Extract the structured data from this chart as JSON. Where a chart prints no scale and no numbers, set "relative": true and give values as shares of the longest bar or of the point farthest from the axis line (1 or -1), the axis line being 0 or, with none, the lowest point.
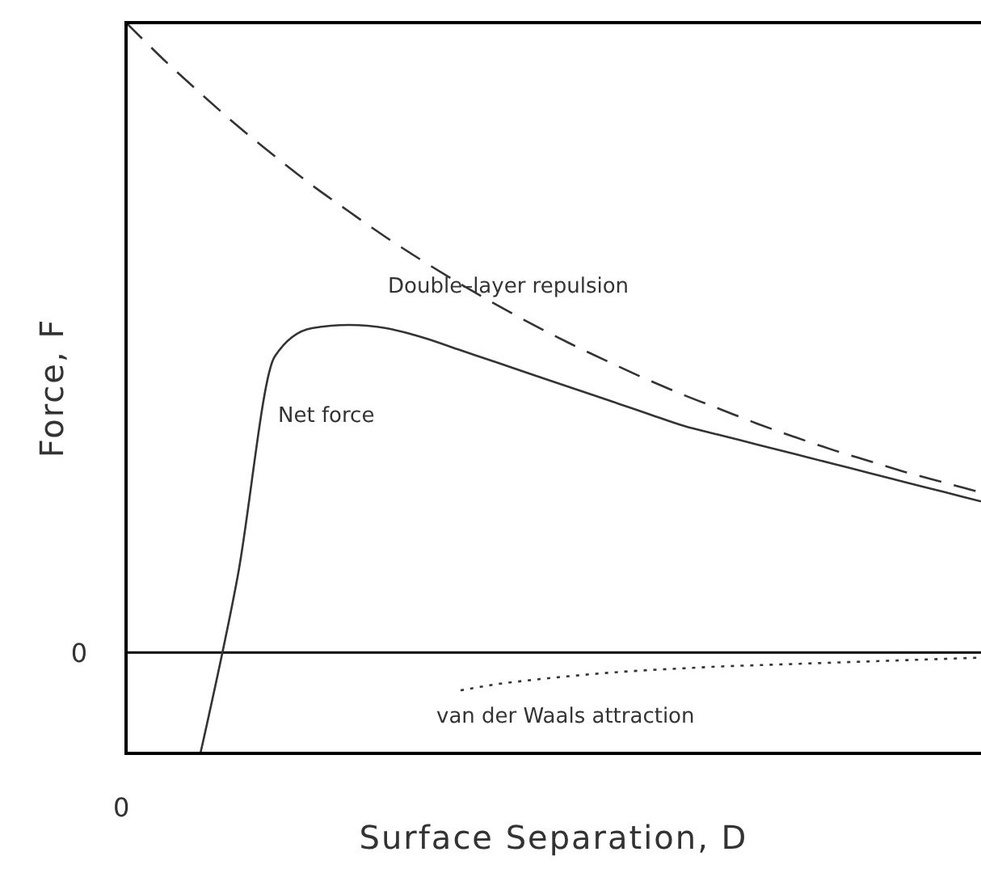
{
  "chart_data": {
    "type": "line",
    "relative": true,
    "xlabel": "Surface Separation, D",
    "ylabel": "Force, F",
    "categories": [
      null,
      null,
      null,
      null,
      null,
      null,
      null,
      null,
      null,
      null,
      null,
      null,
      null,
      null,
      null,
      null,
      null,
      null,
      null,
      null,
      null,
      null,
      null,
      null
    ],
    "series": [
      {
        "color": "#333333",
        "line_style": "dashed",
        "values": [
          1.0,
          0.942,
          0.888,
          0.836,
          0.788,
          0.742,
          0.7,
          0.659,
          0.621,
          0.585,
          0.551,
          0.519,
          0.489,
          0.461,
          0.434,
          0.409,
          0.386,
          0.363,
          0.342,
          0.322,
          0.304,
          0.286,
          0.27,
          0.254
        ]
      },
      {
        "color": "#333333",
        "line_style": "solid",
        "values": [
          null,
          null,
          -0.16,
          0.12,
          0.47,
          0.515,
          0.52,
          0.515,
          0.5,
          0.48,
          0.46,
          0.44,
          0.42,
          0.4,
          0.38,
          0.36,
          0.345,
          0.33,
          0.315,
          0.3,
          0.285,
          0.27,
          0.255,
          0.24
        ]
      },
      {
        "color": "#333333",
        "line_style": "dotted",
        "values": [
          null,
          null,
          null,
          null,
          null,
          null,
          null,
          null,
          null,
          -0.06,
          -0.05,
          -0.043,
          -0.037,
          -0.032,
          -0.028,
          -0.025,
          -0.022,
          -0.02,
          -0.018,
          -0.016,
          -0.014,
          -0.012,
          -0.01,
          -0.008
        ]
      }
    ],
    "ref_lines": [
      {
        "axis": "y",
        "value": 0,
        "label": "0",
        "color": "#000000"
      }
    ],
    "annotations": [
      "Double–layer repulsion",
      "Net force",
      "van der Waals attraction",
      "0"
    ],
    "legend": false,
    "grid": false,
    "marker": "none"
  }
}
